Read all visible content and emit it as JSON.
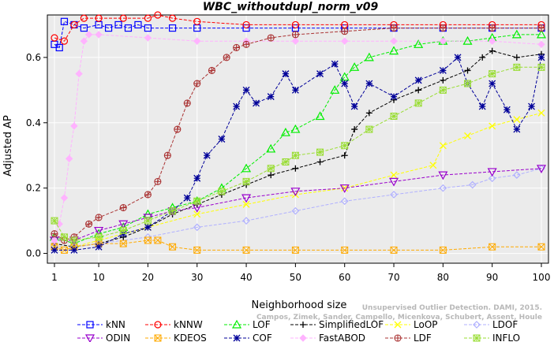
{
  "chart_data": {
    "type": "line",
    "title": "WBC_withoutdupl_norm_v09",
    "xlabel": "Neighborhood size",
    "ylabel": "Adjusted AP",
    "xlim": [
      1,
      100
    ],
    "ylim": [
      -0.03,
      0.73
    ],
    "x_ticks": [
      "1",
      "10",
      "20",
      "30",
      "40",
      "50",
      "60",
      "70",
      "80",
      "90",
      "100"
    ],
    "y_ticks": [
      "0.0",
      "0.2",
      "0.4",
      "0.6"
    ],
    "legend_position": "bottom",
    "watermark_lines": [
      "Unsupervised Outlier Detection. DAMI, 2015.",
      "Campos, Zimek, Sander, Campello, Micenkova, Schubert, Assent, Houle"
    ],
    "series": [
      {
        "name": "kNN",
        "color": "#0000ff",
        "marker": "square",
        "points": [
          [
            1,
            0.64
          ],
          [
            2,
            0.63
          ],
          [
            3,
            0.71
          ],
          [
            5,
            0.7
          ],
          [
            7,
            0.69
          ],
          [
            10,
            0.7
          ],
          [
            12,
            0.69
          ],
          [
            14,
            0.7
          ],
          [
            16,
            0.69
          ],
          [
            18,
            0.7
          ],
          [
            20,
            0.69
          ],
          [
            25,
            0.69
          ],
          [
            30,
            0.69
          ],
          [
            40,
            0.69
          ],
          [
            50,
            0.69
          ],
          [
            60,
            0.69
          ],
          [
            70,
            0.69
          ],
          [
            80,
            0.69
          ],
          [
            90,
            0.69
          ],
          [
            100,
            0.69
          ]
        ]
      },
      {
        "name": "kNNW",
        "color": "#ff0000",
        "marker": "circle",
        "points": [
          [
            1,
            0.66
          ],
          [
            3,
            0.65
          ],
          [
            5,
            0.7
          ],
          [
            7,
            0.72
          ],
          [
            10,
            0.72
          ],
          [
            15,
            0.72
          ],
          [
            20,
            0.72
          ],
          [
            22,
            0.73
          ],
          [
            25,
            0.72
          ],
          [
            30,
            0.71
          ],
          [
            40,
            0.7
          ],
          [
            50,
            0.7
          ],
          [
            60,
            0.7
          ],
          [
            70,
            0.7
          ],
          [
            80,
            0.7
          ],
          [
            90,
            0.7
          ],
          [
            100,
            0.7
          ]
        ]
      },
      {
        "name": "LOF",
        "color": "#00ee00",
        "marker": "triangle",
        "points": [
          [
            1,
            0.05
          ],
          [
            5,
            0.03
          ],
          [
            10,
            0.06
          ],
          [
            15,
            0.08
          ],
          [
            20,
            0.12
          ],
          [
            25,
            0.14
          ],
          [
            30,
            0.16
          ],
          [
            35,
            0.2
          ],
          [
            40,
            0.26
          ],
          [
            45,
            0.32
          ],
          [
            48,
            0.37
          ],
          [
            50,
            0.38
          ],
          [
            55,
            0.42
          ],
          [
            58,
            0.5
          ],
          [
            60,
            0.54
          ],
          [
            62,
            0.57
          ],
          [
            65,
            0.6
          ],
          [
            70,
            0.62
          ],
          [
            75,
            0.64
          ],
          [
            80,
            0.65
          ],
          [
            85,
            0.65
          ],
          [
            90,
            0.66
          ],
          [
            95,
            0.67
          ],
          [
            100,
            0.67
          ]
        ]
      },
      {
        "name": "SimplifiedLOF",
        "color": "#000000",
        "marker": "plus",
        "points": [
          [
            1,
            0.03
          ],
          [
            5,
            0.02
          ],
          [
            10,
            0.03
          ],
          [
            15,
            0.05
          ],
          [
            20,
            0.08
          ],
          [
            25,
            0.12
          ],
          [
            30,
            0.15
          ],
          [
            35,
            0.18
          ],
          [
            40,
            0.21
          ],
          [
            45,
            0.24
          ],
          [
            50,
            0.26
          ],
          [
            55,
            0.28
          ],
          [
            60,
            0.3
          ],
          [
            62,
            0.38
          ],
          [
            65,
            0.43
          ],
          [
            70,
            0.47
          ],
          [
            75,
            0.5
          ],
          [
            80,
            0.53
          ],
          [
            85,
            0.56
          ],
          [
            88,
            0.6
          ],
          [
            90,
            0.62
          ],
          [
            95,
            0.6
          ],
          [
            100,
            0.61
          ]
        ]
      },
      {
        "name": "LoOP",
        "color": "#ffff00",
        "marker": "x",
        "points": [
          [
            1,
            0.02
          ],
          [
            5,
            0.02
          ],
          [
            10,
            0.04
          ],
          [
            20,
            0.08
          ],
          [
            30,
            0.12
          ],
          [
            40,
            0.15
          ],
          [
            50,
            0.18
          ],
          [
            60,
            0.2
          ],
          [
            70,
            0.24
          ],
          [
            78,
            0.27
          ],
          [
            80,
            0.33
          ],
          [
            85,
            0.36
          ],
          [
            90,
            0.39
          ],
          [
            95,
            0.41
          ],
          [
            100,
            0.43
          ]
        ]
      },
      {
        "name": "LDOF",
        "color": "#b0b0ff",
        "marker": "diamond",
        "points": [
          [
            1,
            0.02
          ],
          [
            5,
            0.02
          ],
          [
            10,
            0.03
          ],
          [
            20,
            0.05
          ],
          [
            30,
            0.08
          ],
          [
            40,
            0.1
          ],
          [
            50,
            0.13
          ],
          [
            60,
            0.16
          ],
          [
            70,
            0.18
          ],
          [
            80,
            0.2
          ],
          [
            86,
            0.21
          ],
          [
            90,
            0.23
          ],
          [
            95,
            0.24
          ],
          [
            100,
            0.26
          ]
        ]
      },
      {
        "name": "ODIN",
        "color": "#9900cc",
        "marker": "triangle-down",
        "points": [
          [
            1,
            0.04
          ],
          [
            5,
            0.04
          ],
          [
            10,
            0.07
          ],
          [
            15,
            0.09
          ],
          [
            20,
            0.11
          ],
          [
            25,
            0.13
          ],
          [
            30,
            0.14
          ],
          [
            40,
            0.17
          ],
          [
            50,
            0.19
          ],
          [
            60,
            0.2
          ],
          [
            70,
            0.22
          ],
          [
            80,
            0.24
          ],
          [
            90,
            0.25
          ],
          [
            100,
            0.26
          ]
        ]
      },
      {
        "name": "KDEOS",
        "color": "#ffaa00",
        "marker": "square-x",
        "points": [
          [
            1,
            0.02
          ],
          [
            3,
            0.01
          ],
          [
            5,
            0.02
          ],
          [
            10,
            0.03
          ],
          [
            15,
            0.03
          ],
          [
            20,
            0.04
          ],
          [
            22,
            0.04
          ],
          [
            25,
            0.02
          ],
          [
            30,
            0.01
          ],
          [
            40,
            0.01
          ],
          [
            50,
            0.01
          ],
          [
            60,
            0.01
          ],
          [
            70,
            0.01
          ],
          [
            80,
            0.01
          ],
          [
            90,
            0.02
          ],
          [
            100,
            0.02
          ]
        ]
      },
      {
        "name": "COF",
        "color": "#000099",
        "marker": "asterisk",
        "points": [
          [
            1,
            0.01
          ],
          [
            5,
            0.01
          ],
          [
            10,
            0.02
          ],
          [
            15,
            0.06
          ],
          [
            20,
            0.08
          ],
          [
            25,
            0.13
          ],
          [
            28,
            0.17
          ],
          [
            30,
            0.23
          ],
          [
            32,
            0.3
          ],
          [
            35,
            0.35
          ],
          [
            38,
            0.45
          ],
          [
            40,
            0.5
          ],
          [
            42,
            0.46
          ],
          [
            45,
            0.48
          ],
          [
            48,
            0.55
          ],
          [
            50,
            0.5
          ],
          [
            55,
            0.55
          ],
          [
            58,
            0.58
          ],
          [
            60,
            0.52
          ],
          [
            62,
            0.45
          ],
          [
            65,
            0.52
          ],
          [
            70,
            0.48
          ],
          [
            75,
            0.53
          ],
          [
            80,
            0.56
          ],
          [
            83,
            0.6
          ],
          [
            85,
            0.52
          ],
          [
            88,
            0.45
          ],
          [
            90,
            0.52
          ],
          [
            93,
            0.44
          ],
          [
            95,
            0.38
          ],
          [
            98,
            0.45
          ],
          [
            100,
            0.6
          ]
        ]
      },
      {
        "name": "FastABOD",
        "color": "#ffb3ff",
        "marker": "diamond-filled",
        "points": [
          [
            1,
            0.04
          ],
          [
            2,
            0.09
          ],
          [
            3,
            0.17
          ],
          [
            4,
            0.29
          ],
          [
            5,
            0.39
          ],
          [
            6,
            0.55
          ],
          [
            7,
            0.65
          ],
          [
            8,
            0.67
          ],
          [
            10,
            0.67
          ],
          [
            20,
            0.66
          ],
          [
            30,
            0.65
          ],
          [
            40,
            0.65
          ],
          [
            50,
            0.65
          ],
          [
            60,
            0.65
          ],
          [
            70,
            0.65
          ],
          [
            80,
            0.65
          ],
          [
            90,
            0.65
          ],
          [
            100,
            0.64
          ]
        ]
      },
      {
        "name": "LDF",
        "color": "#aa3333",
        "marker": "circle-plus",
        "points": [
          [
            1,
            0.06
          ],
          [
            3,
            0.04
          ],
          [
            5,
            0.05
          ],
          [
            8,
            0.09
          ],
          [
            10,
            0.11
          ],
          [
            15,
            0.14
          ],
          [
            20,
            0.18
          ],
          [
            22,
            0.22
          ],
          [
            24,
            0.3
          ],
          [
            26,
            0.38
          ],
          [
            28,
            0.46
          ],
          [
            30,
            0.52
          ],
          [
            33,
            0.56
          ],
          [
            36,
            0.6
          ],
          [
            38,
            0.63
          ],
          [
            40,
            0.64
          ],
          [
            45,
            0.66
          ],
          [
            50,
            0.67
          ],
          [
            60,
            0.68
          ],
          [
            70,
            0.69
          ],
          [
            80,
            0.69
          ],
          [
            90,
            0.69
          ],
          [
            100,
            0.69
          ]
        ]
      },
      {
        "name": "INFLO",
        "color": "#99dd33",
        "marker": "star-box",
        "points": [
          [
            1,
            0.1
          ],
          [
            3,
            0.05
          ],
          [
            5,
            0.04
          ],
          [
            10,
            0.05
          ],
          [
            15,
            0.07
          ],
          [
            20,
            0.1
          ],
          [
            25,
            0.13
          ],
          [
            30,
            0.16
          ],
          [
            35,
            0.19
          ],
          [
            40,
            0.22
          ],
          [
            45,
            0.26
          ],
          [
            48,
            0.28
          ],
          [
            50,
            0.3
          ],
          [
            55,
            0.31
          ],
          [
            60,
            0.33
          ],
          [
            65,
            0.38
          ],
          [
            70,
            0.42
          ],
          [
            75,
            0.46
          ],
          [
            80,
            0.5
          ],
          [
            85,
            0.52
          ],
          [
            90,
            0.55
          ],
          [
            95,
            0.57
          ],
          [
            100,
            0.57
          ]
        ]
      }
    ]
  }
}
